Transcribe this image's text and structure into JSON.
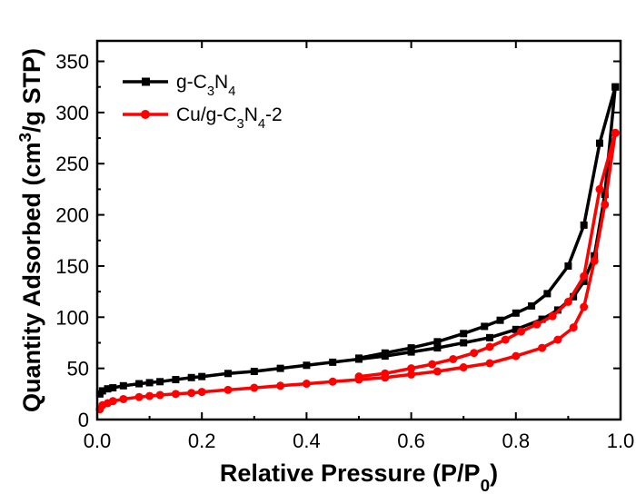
{
  "chart_data": {
    "type": "line",
    "xlabel": "Relative Pressure (P/P0)",
    "ylabel": "Quantity Adsorbed (cm3/g STP)",
    "xlim": [
      0.0,
      1.0
    ],
    "ylim": [
      0,
      370
    ],
    "xticks": [
      0.0,
      0.2,
      0.4,
      0.6,
      0.8,
      1.0
    ],
    "xtick_labels": [
      "0.0",
      "0.2",
      "0.4",
      "0.6",
      "0.8",
      "1.0"
    ],
    "yticks": [
      0,
      50,
      100,
      150,
      200,
      250,
      300,
      350
    ],
    "ytick_labels": [
      "0",
      "50",
      "100",
      "150",
      "200",
      "250",
      "300",
      "350"
    ],
    "grid": false,
    "legend": "top-left",
    "series": [
      {
        "name": "g-C3N4",
        "color": "#000000",
        "marker": "square",
        "adsorption": {
          "x": [
            0.005,
            0.01,
            0.02,
            0.03,
            0.05,
            0.08,
            0.1,
            0.12,
            0.15,
            0.18,
            0.2,
            0.25,
            0.3,
            0.35,
            0.4,
            0.45,
            0.5,
            0.55,
            0.6,
            0.65,
            0.7,
            0.75,
            0.8,
            0.85,
            0.88,
            0.91,
            0.93,
            0.95,
            0.97,
            0.99
          ],
          "y": [
            25,
            28,
            30,
            31,
            33,
            35,
            36,
            37,
            39,
            41,
            42,
            45,
            47,
            50,
            53,
            56,
            59,
            62,
            66,
            70,
            75,
            80,
            88,
            98,
            107,
            120,
            135,
            160,
            220,
            325
          ]
        },
        "desorption": {
          "x": [
            0.99,
            0.96,
            0.93,
            0.9,
            0.86,
            0.83,
            0.8,
            0.77,
            0.74,
            0.7,
            0.65,
            0.6,
            0.55,
            0.5
          ],
          "y": [
            325,
            270,
            190,
            150,
            123,
            111,
            104,
            97,
            91,
            84,
            76,
            70,
            65,
            60
          ]
        }
      },
      {
        "name": "Cu/g-C3N4-2",
        "color": "#ff0000",
        "marker": "circle",
        "adsorption": {
          "x": [
            0.005,
            0.01,
            0.02,
            0.03,
            0.05,
            0.08,
            0.1,
            0.12,
            0.15,
            0.18,
            0.2,
            0.25,
            0.3,
            0.35,
            0.4,
            0.45,
            0.5,
            0.55,
            0.6,
            0.65,
            0.7,
            0.75,
            0.8,
            0.85,
            0.88,
            0.91,
            0.93,
            0.95,
            0.97,
            0.99
          ],
          "y": [
            10,
            14,
            16,
            18,
            20,
            22,
            23,
            24,
            25,
            26,
            27,
            29,
            31,
            33,
            35,
            37,
            39,
            41,
            44,
            47,
            51,
            55,
            62,
            70,
            78,
            90,
            110,
            155,
            210,
            280
          ]
        },
        "desorption": {
          "x": [
            0.99,
            0.96,
            0.93,
            0.9,
            0.87,
            0.84,
            0.81,
            0.78,
            0.75,
            0.72,
            0.68,
            0.64,
            0.6,
            0.55,
            0.5
          ],
          "y": [
            280,
            225,
            140,
            115,
            101,
            93,
            86,
            78,
            71,
            65,
            59,
            54,
            50,
            45,
            42
          ]
        }
      }
    ]
  }
}
